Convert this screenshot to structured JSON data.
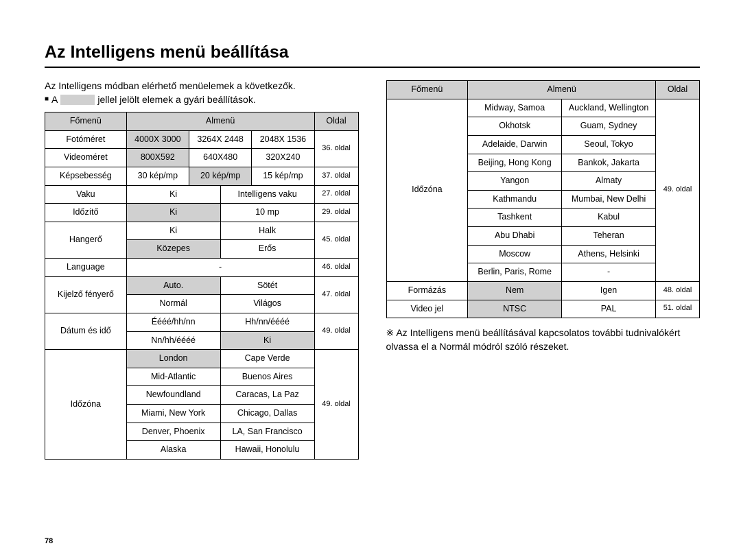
{
  "title": "Az Intelligens menü beállítása",
  "intro": "Az Intelligens módban elérhető menüelemek a következők.",
  "note_prefix": "A",
  "note_suffix": "jellel jelölt elemek a gyári beállítások.",
  "colors": {
    "shade": "#d0d0d0",
    "border": "#000000",
    "bg": "#ffffff"
  },
  "headers": {
    "main": "Főmenü",
    "sub": "Almenü",
    "page": "Oldal"
  },
  "left_groups": [
    {
      "label": "Fotóméret",
      "rows": [
        [
          {
            "t": "4000X 3000",
            "sh": true
          },
          {
            "t": "3264X 2448"
          },
          {
            "t": "2048X 1536"
          }
        ]
      ],
      "page": "36. oldal",
      "mergePageDown": 1
    },
    {
      "label": "Videoméret",
      "rows": [
        [
          {
            "t": "800X592",
            "sh": true
          },
          {
            "t": "640X480"
          },
          {
            "t": "320X240"
          }
        ]
      ],
      "page": null
    },
    {
      "label": "Képsebesség",
      "rows": [
        [
          {
            "t": "30 kép/mp"
          },
          {
            "t": "20 kép/mp",
            "sh": true
          },
          {
            "t": "15 kép/mp"
          }
        ]
      ],
      "page": "37. oldal"
    },
    {
      "label": "Vaku",
      "rows": [
        [
          {
            "t": "Ki",
            "span": 1.5
          },
          {
            "t": "Intelligens vaku",
            "span": 1.5
          }
        ]
      ],
      "page": "27. oldal"
    },
    {
      "label": "Időzítő",
      "rows": [
        [
          {
            "t": "Ki",
            "sh": true,
            "span": 1.5
          },
          {
            "t": "10 mp",
            "span": 1.5
          }
        ]
      ],
      "page": "29. oldal"
    },
    {
      "label": "Hangerő",
      "rows": [
        [
          {
            "t": "Ki",
            "span": 1.5
          },
          {
            "t": "Halk",
            "span": 1.5
          }
        ],
        [
          {
            "t": "Közepes",
            "sh": true,
            "span": 1.5
          },
          {
            "t": "Erős",
            "span": 1.5
          }
        ]
      ],
      "page": "45. oldal"
    },
    {
      "label": "Language",
      "rows": [
        [
          {
            "t": "-",
            "span": 3
          }
        ]
      ],
      "page": "46. oldal"
    },
    {
      "label": "Kijelző fényerő",
      "rows": [
        [
          {
            "t": "Auto.",
            "sh": true,
            "span": 1.5
          },
          {
            "t": "Sötét",
            "span": 1.5
          }
        ],
        [
          {
            "t": "Normál",
            "span": 1.5
          },
          {
            "t": "Világos",
            "span": 1.5
          }
        ]
      ],
      "page": "47. oldal"
    },
    {
      "label": "Dátum és idő",
      "rows": [
        [
          {
            "t": "Éééé/hh/nn",
            "span": 1.5
          },
          {
            "t": "Hh/nn/éééé",
            "span": 1.5
          }
        ],
        [
          {
            "t": "Nn/hh/éééé",
            "span": 1.5
          },
          {
            "t": "Ki",
            "sh": true,
            "span": 1.5
          }
        ]
      ],
      "page": "49. oldal"
    },
    {
      "label": "Időzóna",
      "rows": [
        [
          {
            "t": "London",
            "sh": true,
            "span": 1.5
          },
          {
            "t": "Cape Verde",
            "span": 1.5
          }
        ],
        [
          {
            "t": "Mid-Atlantic",
            "span": 1.5
          },
          {
            "t": "Buenos Aires",
            "span": 1.5
          }
        ],
        [
          {
            "t": "Newfoundland",
            "span": 1.5
          },
          {
            "t": "Caracas, La Paz",
            "span": 1.5
          }
        ],
        [
          {
            "t": "Miami, New York",
            "span": 1.5
          },
          {
            "t": "Chicago, Dallas",
            "span": 1.5
          }
        ],
        [
          {
            "t": "Denver, Phoenix",
            "span": 1.5
          },
          {
            "t": "LA, San Francisco",
            "span": 1.5
          }
        ],
        [
          {
            "t": "Alaska",
            "span": 1.5
          },
          {
            "t": "Hawaii, Honolulu",
            "span": 1.5
          }
        ]
      ],
      "page": "49. oldal"
    }
  ],
  "right_groups": [
    {
      "label": "Időzóna",
      "rows": [
        [
          {
            "t": "Midway, Samoa",
            "span": 1.5
          },
          {
            "t": "Auckland, Wellington",
            "span": 1.5
          }
        ],
        [
          {
            "t": "Okhotsk",
            "span": 1.5
          },
          {
            "t": "Guam, Sydney",
            "span": 1.5
          }
        ],
        [
          {
            "t": "Adelaide, Darwin",
            "span": 1.5
          },
          {
            "t": "Seoul, Tokyo",
            "span": 1.5
          }
        ],
        [
          {
            "t": "Beijing, Hong Kong",
            "span": 1.5
          },
          {
            "t": "Bankok, Jakarta",
            "span": 1.5
          }
        ],
        [
          {
            "t": "Yangon",
            "span": 1.5
          },
          {
            "t": "Almaty",
            "span": 1.5
          }
        ],
        [
          {
            "t": "Kathmandu",
            "span": 1.5
          },
          {
            "t": "Mumbai, New Delhi",
            "span": 1.5
          }
        ],
        [
          {
            "t": "Tashkent",
            "span": 1.5
          },
          {
            "t": "Kabul",
            "span": 1.5
          }
        ],
        [
          {
            "t": "Abu Dhabi",
            "span": 1.5
          },
          {
            "t": "Teheran",
            "span": 1.5
          }
        ],
        [
          {
            "t": "Moscow",
            "span": 1.5
          },
          {
            "t": "Athens, Helsinki",
            "span": 1.5
          }
        ],
        [
          {
            "t": "Berlin, Paris, Rome",
            "span": 1.5
          },
          {
            "t": "-",
            "span": 1.5
          }
        ]
      ],
      "page": "49. oldal"
    },
    {
      "label": "Formázás",
      "rows": [
        [
          {
            "t": "Nem",
            "sh": true,
            "span": 1.5
          },
          {
            "t": "Igen",
            "span": 1.5
          }
        ]
      ],
      "page": "48. oldal"
    },
    {
      "label": "Video jel",
      "rows": [
        [
          {
            "t": "NTSC",
            "sh": true,
            "span": 1.5
          },
          {
            "t": "PAL",
            "span": 1.5
          }
        ]
      ],
      "page": "51. oldal"
    }
  ],
  "footnote": "※ Az Intelligens menü beállításával kapcsolatos további tudnivalókért olvassa el a Normál módról szóló részeket.",
  "page_number": "78"
}
